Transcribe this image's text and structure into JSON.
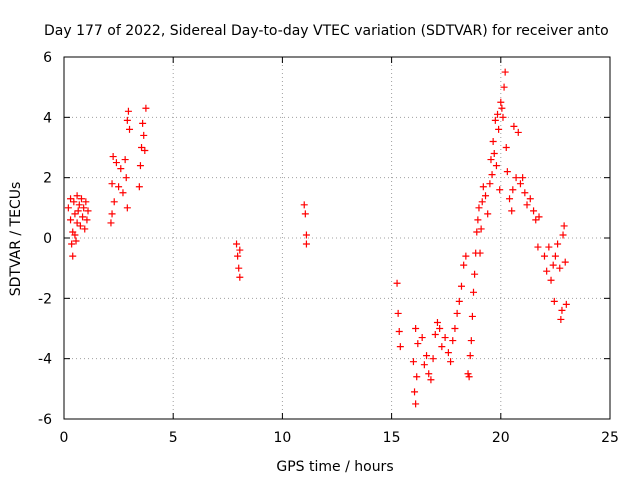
{
  "chart_data": {
    "type": "scatter",
    "title": "Day 177 of 2022, Sidereal Day-to-day VTEC variation (SDTVAR) for receiver anto",
    "xlabel": "GPS time / hours",
    "ylabel": "SDTVAR / TECUs",
    "xlim": [
      0,
      25
    ],
    "ylim": [
      -6,
      6
    ],
    "x_ticks": [
      0,
      5,
      10,
      15,
      20,
      25
    ],
    "y_ticks": [
      -6,
      -4,
      -2,
      0,
      2,
      4,
      6
    ],
    "grid": true,
    "marker": "plus",
    "colors": {
      "series": "#ff0000",
      "grid": "#a0a0a0",
      "axis": "#000000"
    },
    "series": [
      {
        "name": "SDTVAR",
        "points": [
          [
            0.2,
            1.0
          ],
          [
            0.3,
            1.3
          ],
          [
            0.3,
            0.6
          ],
          [
            0.35,
            -0.2
          ],
          [
            0.4,
            0.2
          ],
          [
            0.4,
            -0.6
          ],
          [
            0.45,
            1.2
          ],
          [
            0.5,
            0.8
          ],
          [
            0.5,
            0.1
          ],
          [
            0.55,
            -0.1
          ],
          [
            0.6,
            1.4
          ],
          [
            0.6,
            0.5
          ],
          [
            0.65,
            0.9
          ],
          [
            0.7,
            1.1
          ],
          [
            0.75,
            0.4
          ],
          [
            0.8,
            1.3
          ],
          [
            0.85,
            0.7
          ],
          [
            0.9,
            1.0
          ],
          [
            0.95,
            0.3
          ],
          [
            1.0,
            1.2
          ],
          [
            1.05,
            0.6
          ],
          [
            1.1,
            0.9
          ],
          [
            2.15,
            0.5
          ],
          [
            2.2,
            0.8
          ],
          [
            2.2,
            1.8
          ],
          [
            2.25,
            2.7
          ],
          [
            2.3,
            1.2
          ],
          [
            2.4,
            2.5
          ],
          [
            2.5,
            1.7
          ],
          [
            2.6,
            2.3
          ],
          [
            2.7,
            1.5
          ],
          [
            2.8,
            2.6
          ],
          [
            2.85,
            2.0
          ],
          [
            2.9,
            1.0
          ],
          [
            2.9,
            3.9
          ],
          [
            2.95,
            4.2
          ],
          [
            3.0,
            3.6
          ],
          [
            3.45,
            1.7
          ],
          [
            3.5,
            2.4
          ],
          [
            3.55,
            3.0
          ],
          [
            3.6,
            3.8
          ],
          [
            3.65,
            3.4
          ],
          [
            3.7,
            2.9
          ],
          [
            3.75,
            4.3
          ],
          [
            7.9,
            -0.2
          ],
          [
            7.95,
            -0.6
          ],
          [
            8.0,
            -1.0
          ],
          [
            8.05,
            -1.3
          ],
          [
            8.05,
            -0.4
          ],
          [
            11.0,
            1.1
          ],
          [
            11.05,
            0.8
          ],
          [
            11.1,
            -0.2
          ],
          [
            11.1,
            0.1
          ],
          [
            15.25,
            -1.5
          ],
          [
            15.3,
            -2.5
          ],
          [
            15.35,
            -3.1
          ],
          [
            15.4,
            -3.6
          ],
          [
            16.0,
            -4.1
          ],
          [
            16.05,
            -5.1
          ],
          [
            16.1,
            -3.0
          ],
          [
            16.1,
            -5.5
          ],
          [
            16.15,
            -4.6
          ],
          [
            16.2,
            -3.5
          ],
          [
            16.4,
            -3.3
          ],
          [
            16.5,
            -4.2
          ],
          [
            16.6,
            -3.9
          ],
          [
            16.7,
            -4.5
          ],
          [
            16.8,
            -4.7
          ],
          [
            16.9,
            -4.0
          ],
          [
            17.0,
            -3.2
          ],
          [
            17.1,
            -2.8
          ],
          [
            17.2,
            -3.0
          ],
          [
            17.3,
            -3.6
          ],
          [
            17.45,
            -3.3
          ],
          [
            17.6,
            -3.8
          ],
          [
            17.7,
            -4.1
          ],
          [
            17.8,
            -3.4
          ],
          [
            17.9,
            -3.0
          ],
          [
            18.0,
            -2.5
          ],
          [
            18.1,
            -2.1
          ],
          [
            18.2,
            -1.6
          ],
          [
            18.3,
            -0.9
          ],
          [
            18.4,
            -0.6
          ],
          [
            18.5,
            -4.5
          ],
          [
            18.55,
            -4.6
          ],
          [
            18.6,
            -3.9
          ],
          [
            18.65,
            -3.4
          ],
          [
            18.7,
            -2.6
          ],
          [
            18.75,
            -1.8
          ],
          [
            18.8,
            -1.2
          ],
          [
            18.85,
            -0.5
          ],
          [
            18.9,
            0.2
          ],
          [
            18.95,
            0.6
          ],
          [
            19.0,
            1.0
          ],
          [
            19.05,
            -0.5
          ],
          [
            19.1,
            0.3
          ],
          [
            19.15,
            1.2
          ],
          [
            19.2,
            1.7
          ],
          [
            19.3,
            1.4
          ],
          [
            19.4,
            0.8
          ],
          [
            19.5,
            1.8
          ],
          [
            19.55,
            2.6
          ],
          [
            19.6,
            2.1
          ],
          [
            19.65,
            3.2
          ],
          [
            19.7,
            2.8
          ],
          [
            19.75,
            3.9
          ],
          [
            19.8,
            2.4
          ],
          [
            19.85,
            4.1
          ],
          [
            19.9,
            3.6
          ],
          [
            19.95,
            1.6
          ],
          [
            20.0,
            4.5
          ],
          [
            20.05,
            4.3
          ],
          [
            20.1,
            4.0
          ],
          [
            20.15,
            5.0
          ],
          [
            20.2,
            5.5
          ],
          [
            20.25,
            3.0
          ],
          [
            20.3,
            2.2
          ],
          [
            20.4,
            1.3
          ],
          [
            20.5,
            0.9
          ],
          [
            20.55,
            1.6
          ],
          [
            20.6,
            3.7
          ],
          [
            20.7,
            2.0
          ],
          [
            20.8,
            3.5
          ],
          [
            20.9,
            1.8
          ],
          [
            21.0,
            2.0
          ],
          [
            21.1,
            1.5
          ],
          [
            21.2,
            1.1
          ],
          [
            21.35,
            1.3
          ],
          [
            21.5,
            0.9
          ],
          [
            21.6,
            0.6
          ],
          [
            21.7,
            -0.3
          ],
          [
            21.75,
            0.7
          ],
          [
            22.0,
            -0.6
          ],
          [
            22.1,
            -1.1
          ],
          [
            22.2,
            -0.3
          ],
          [
            22.3,
            -1.4
          ],
          [
            22.4,
            -0.9
          ],
          [
            22.45,
            -2.1
          ],
          [
            22.5,
            -0.6
          ],
          [
            22.6,
            -0.2
          ],
          [
            22.7,
            -1.0
          ],
          [
            22.75,
            -2.7
          ],
          [
            22.8,
            -2.4
          ],
          [
            22.85,
            0.1
          ],
          [
            22.9,
            0.4
          ],
          [
            22.95,
            -0.8
          ],
          [
            23.0,
            -2.2
          ]
        ]
      }
    ]
  }
}
